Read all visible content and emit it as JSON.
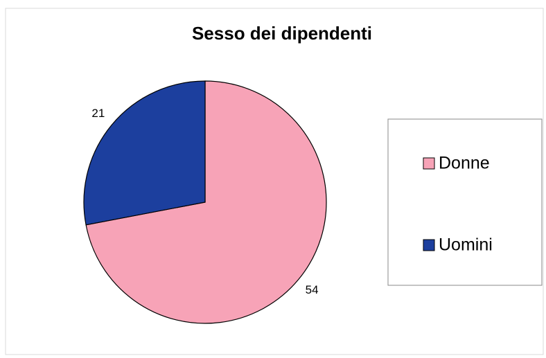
{
  "chart_data": {
    "type": "pie",
    "title": "Sesso dei dipendenti",
    "categories": [
      "Donne",
      "Uomini"
    ],
    "values": [
      54,
      21
    ],
    "colors": [
      "#f7a3b7",
      "#1c3f9e"
    ],
    "legend": "right"
  }
}
